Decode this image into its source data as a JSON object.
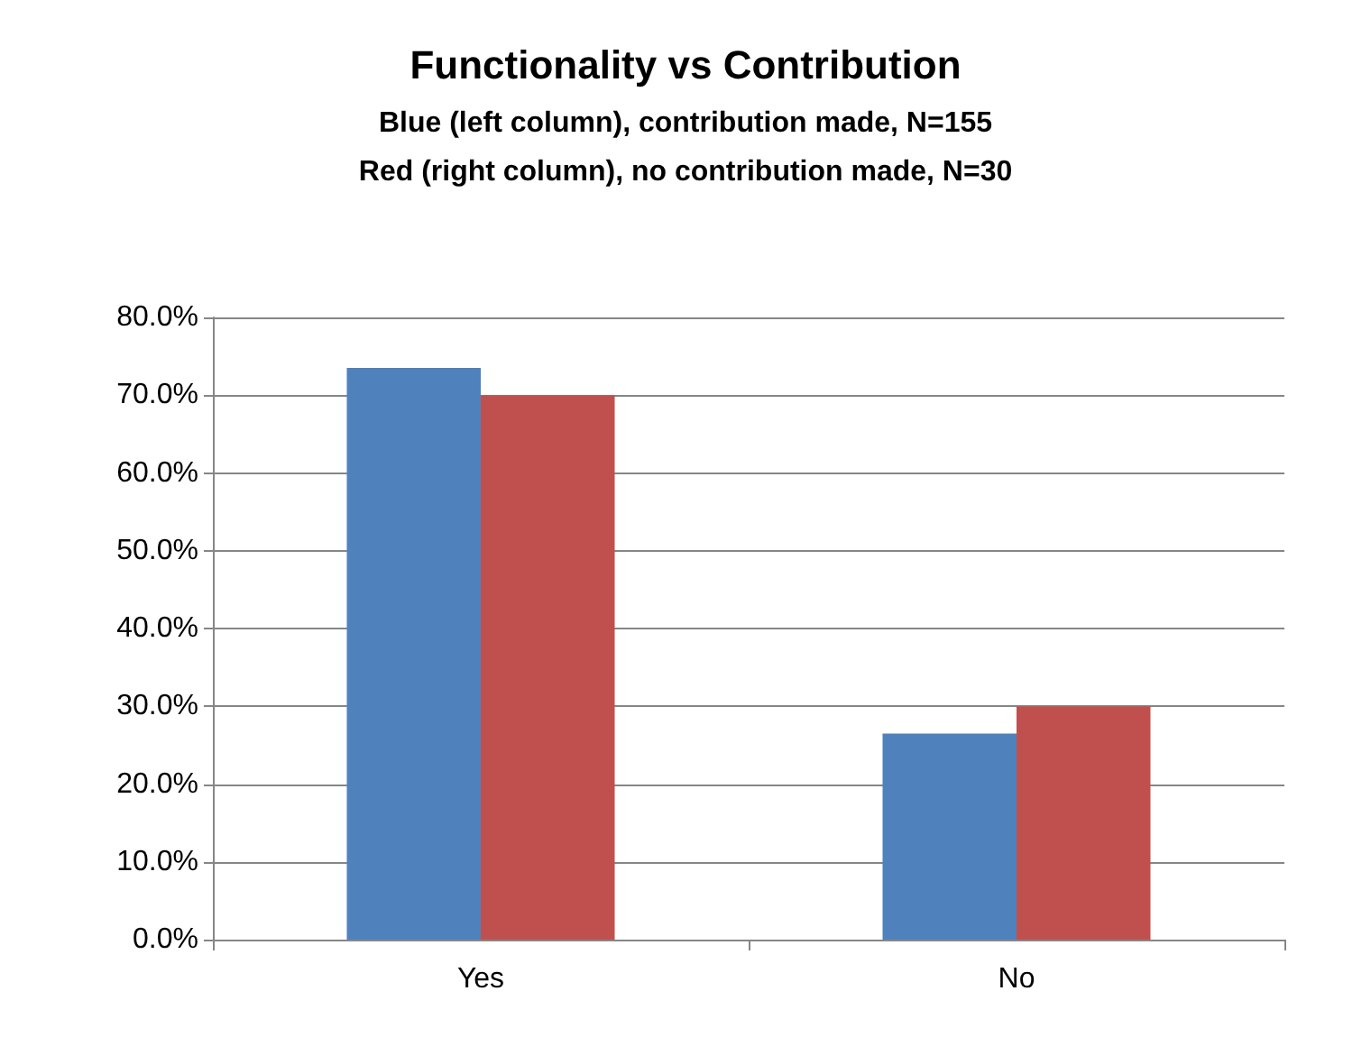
{
  "chart_data": {
    "type": "bar",
    "title": "Functionality vs Contribution",
    "subtitle": "Blue (left column), contribution made, N=155\nRed (right column), no contribution made, N=30",
    "categories": [
      "Yes",
      "No"
    ],
    "series": [
      {
        "color": "#4f81bd",
        "values": [
          73.5,
          26.5
        ]
      },
      {
        "color": "#c0504d",
        "values": [
          70.0,
          30.0
        ]
      }
    ],
    "ylim": [
      0,
      80
    ],
    "yticks": [
      {
        "value": 0,
        "label": "0.0%"
      },
      {
        "value": 10,
        "label": "10.0%"
      },
      {
        "value": 20,
        "label": "20.0%"
      },
      {
        "value": 30,
        "label": "30.0%"
      },
      {
        "value": 40,
        "label": "40.0%"
      },
      {
        "value": 50,
        "label": "50.0%"
      },
      {
        "value": 60,
        "label": "60.0%"
      },
      {
        "value": 70,
        "label": "70.0%"
      },
      {
        "value": 80,
        "label": "80.0%"
      }
    ],
    "grid": "y"
  }
}
